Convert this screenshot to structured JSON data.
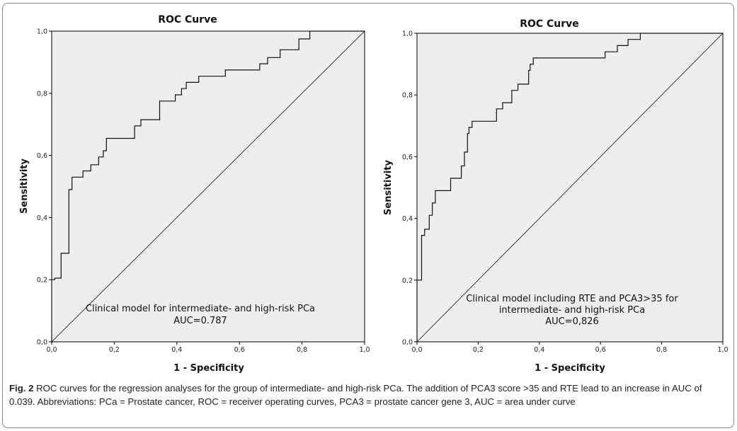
{
  "figure": {
    "caption_label": "Fig. 2",
    "caption_text": "ROC curves for the regression analyses for the group of intermediate- and high-risk PCa. The addition of PCA3 score >35 and RTE lead to an increase in AUC of 0.039. Abbreviations: PCa = Prostate cancer, ROC = receiver operating curves, PCA3 = prostate cancer gene 3, AUC = area under curve"
  },
  "colors": {
    "plot_bg": "#eeeeee",
    "line": "#111111",
    "diagonal": "#111111",
    "frame": "#8a8a8a"
  },
  "chart_data": [
    {
      "type": "line",
      "title": "ROC Curve",
      "xlabel": "1 - Specificity",
      "ylabel": "Sensitivity",
      "xlim": [
        0,
        1
      ],
      "ylim": [
        0,
        1
      ],
      "xticks": [
        "0,0",
        "0,2",
        "0,4",
        "0,6",
        "0,8",
        "1,0"
      ],
      "yticks": [
        "0,0",
        "0,2",
        "0,4",
        "0,6",
        "0,8",
        "1,0"
      ],
      "annotation": [
        "Clinical model for intermediate- and high-risk PCa",
        "AUC=0.787"
      ],
      "series": [
        {
          "step": true,
          "x": [
            0,
            0,
            0.01,
            0.01,
            0.03,
            0.03,
            0.055,
            0.055,
            0.065,
            0.065,
            0.1,
            0.1,
            0.125,
            0.125,
            0.15,
            0.15,
            0.165,
            0.165,
            0.175,
            0.175,
            0.185,
            0.185,
            0.265,
            0.265,
            0.285,
            0.285,
            0.345,
            0.345,
            0.395,
            0.395,
            0.415,
            0.415,
            0.43,
            0.43,
            0.47,
            0.47,
            0.555,
            0.555,
            0.665,
            0.665,
            0.69,
            0.69,
            0.73,
            0.73,
            0.79,
            0.79,
            0.825,
            0.825,
            1
          ],
          "y": [
            0,
            0.2,
            0.2,
            0.205,
            0.205,
            0.285,
            0.285,
            0.49,
            0.49,
            0.53,
            0.53,
            0.55,
            0.55,
            0.57,
            0.57,
            0.595,
            0.595,
            0.615,
            0.615,
            0.655,
            0.655,
            0.655,
            0.655,
            0.695,
            0.695,
            0.715,
            0.715,
            0.775,
            0.775,
            0.795,
            0.795,
            0.815,
            0.815,
            0.835,
            0.835,
            0.855,
            0.855,
            0.875,
            0.875,
            0.895,
            0.895,
            0.915,
            0.915,
            0.94,
            0.94,
            0.975,
            0.975,
            1.0,
            1.0
          ]
        },
        {
          "name": "",
          "reference": true,
          "x": [
            0,
            1
          ],
          "y": [
            0,
            1
          ]
        }
      ]
    },
    {
      "type": "line",
      "title": "ROC Curve",
      "xlabel": "1 - Specificity",
      "ylabel": "Sensitivity",
      "xlim": [
        0,
        1
      ],
      "ylim": [
        0,
        1
      ],
      "xticks": [
        "0,0",
        "0,2",
        "0,4",
        "0,6",
        "0,8",
        "1,0"
      ],
      "yticks": [
        "0,0",
        "0,2",
        "0,4",
        "0,6",
        "0,8",
        "1,0"
      ],
      "annotation": [
        "Clinical model including RTE and PCA3>35 for",
        "intermediate- and high-risk PCa",
        "AUC=0,826"
      ],
      "series": [
        {
          "step": true,
          "x": [
            0,
            0,
            0.015,
            0.015,
            0.025,
            0.025,
            0.04,
            0.04,
            0.05,
            0.05,
            0.06,
            0.06,
            0.075,
            0.075,
            0.11,
            0.11,
            0.145,
            0.145,
            0.155,
            0.155,
            0.165,
            0.165,
            0.17,
            0.17,
            0.18,
            0.18,
            0.26,
            0.26,
            0.28,
            0.28,
            0.31,
            0.31,
            0.33,
            0.33,
            0.365,
            0.365,
            0.37,
            0.37,
            0.38,
            0.38,
            0.47,
            0.47,
            0.615,
            0.615,
            0.655,
            0.655,
            0.69,
            0.69,
            0.73,
            0.73,
            0.78,
            0.78,
            1
          ],
          "y": [
            0,
            0.2,
            0.2,
            0.345,
            0.345,
            0.365,
            0.365,
            0.41,
            0.41,
            0.45,
            0.45,
            0.49,
            0.49,
            0.49,
            0.49,
            0.53,
            0.53,
            0.57,
            0.57,
            0.615,
            0.615,
            0.675,
            0.675,
            0.695,
            0.695,
            0.715,
            0.715,
            0.755,
            0.755,
            0.775,
            0.775,
            0.815,
            0.815,
            0.835,
            0.835,
            0.88,
            0.88,
            0.9,
            0.9,
            0.92,
            0.92,
            0.92,
            0.92,
            0.94,
            0.94,
            0.96,
            0.96,
            0.98,
            0.98,
            1.0,
            1.0,
            1.0,
            1.0
          ]
        },
        {
          "name": "",
          "reference": true,
          "x": [
            0,
            1
          ],
          "y": [
            0,
            1
          ]
        }
      ]
    }
  ]
}
